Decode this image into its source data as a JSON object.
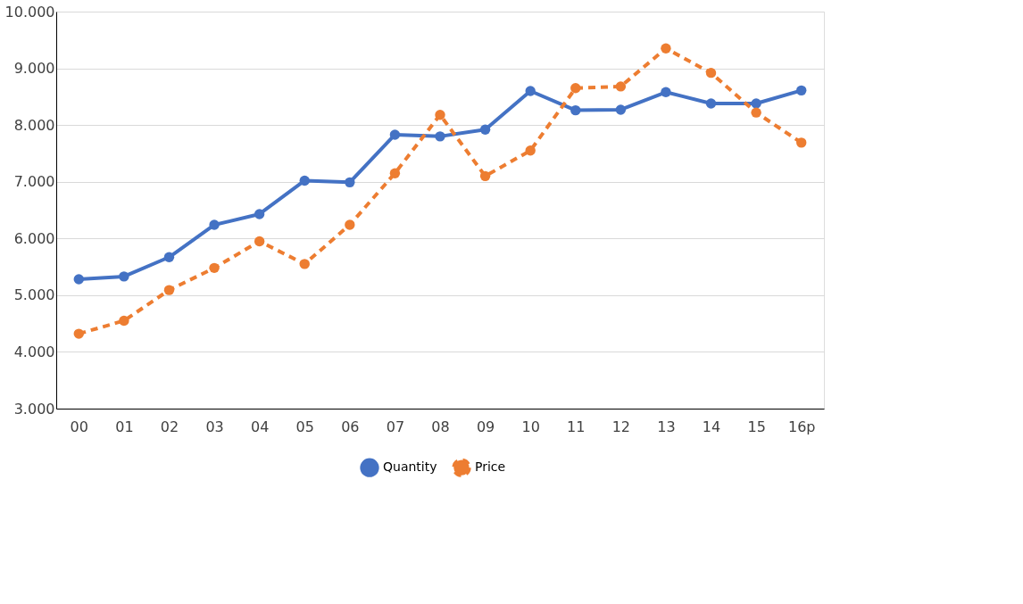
{
  "chart_data": {
    "type": "line",
    "categories": [
      "00",
      "01",
      "02",
      "03",
      "04",
      "05",
      "06",
      "07",
      "08",
      "09",
      "10",
      "11",
      "12",
      "13",
      "14",
      "15",
      "16p"
    ],
    "series": [
      {
        "name": "Quantity",
        "color": "#4472c4",
        "line_style": "solid",
        "values": [
          5280,
          5330,
          5670,
          6240,
          6430,
          7020,
          6990,
          7830,
          7800,
          7920,
          8600,
          8260,
          8270,
          8580,
          8380,
          8380,
          8610
        ]
      },
      {
        "name": "Price",
        "color": "#ed7d31",
        "line_style": "dashed",
        "values": [
          4320,
          4550,
          5090,
          5480,
          5950,
          5550,
          6240,
          7150,
          8180,
          7100,
          7550,
          8650,
          8680,
          9350,
          8920,
          8220,
          7690
        ]
      }
    ],
    "ylim": [
      3000,
      10000
    ],
    "yticks": [
      {
        "value": 3000,
        "label": "3.000"
      },
      {
        "value": 4000,
        "label": "4.000"
      },
      {
        "value": 5000,
        "label": "5.000"
      },
      {
        "value": 6000,
        "label": "6.000"
      },
      {
        "value": 7000,
        "label": "7.000"
      },
      {
        "value": 8000,
        "label": "8.000"
      },
      {
        "value": 9000,
        "label": "9.000"
      },
      {
        "value": 10000,
        "label": "10.000"
      }
    ],
    "grid": "y",
    "legend": "bottom",
    "marker": "circle"
  }
}
